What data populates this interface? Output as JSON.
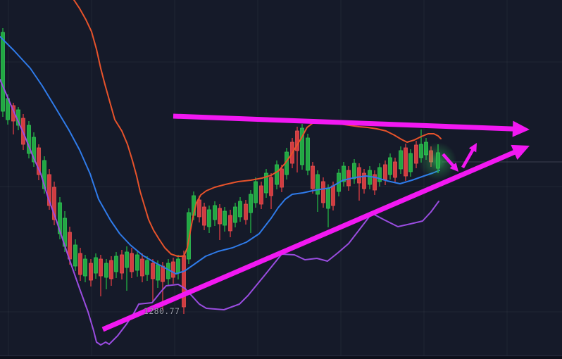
{
  "chart": {
    "price_label": "1280.77",
    "colors": {
      "background": "#151a29",
      "grid": "#ffffff",
      "candle_up": "#22a843",
      "candle_up_border": "#33c155",
      "candle_down": "#d23b41",
      "candle_down_border": "#e2534f",
      "band_upper": "#e8532b",
      "band_middle": "#2f7bea",
      "band_lower": "#9a4ce0",
      "annotation_magenta": "#f218f2",
      "glow_green": "#3ef06a",
      "price_line": "#9aa0b0",
      "label_text": "#9a9daa"
    },
    "grid": {
      "vertical_x": [
        12,
        130,
        248,
        366,
        484,
        602,
        720
      ],
      "horizontal_y": [
        88,
        265,
        443
      ]
    }
  },
  "chart_data": {
    "type": "candlestick",
    "title": "",
    "xlabel": "",
    "ylabel": "",
    "visible_price_labels": [
      "1280.77"
    ],
    "price_label_pos": [
      204,
      435
    ],
    "current_price_line": {
      "y": 230,
      "x_from": 628,
      "x_to": 798
    },
    "candles_format": [
      "x",
      "wick_top",
      "body_top",
      "body_bottom",
      "wick_bottom",
      "direction(g=up,r=down)"
    ],
    "candles": [
      [
        4,
        40,
        46,
        158,
        166,
        "g"
      ],
      [
        11,
        134,
        140,
        170,
        177,
        "g"
      ],
      [
        19,
        146,
        150,
        172,
        191,
        "r"
      ],
      [
        26,
        152,
        156,
        178,
        185,
        "g"
      ],
      [
        33,
        162,
        168,
        205,
        213,
        "r"
      ],
      [
        41,
        172,
        178,
        218,
        225,
        "g"
      ],
      [
        48,
        188,
        195,
        230,
        237,
        "g"
      ],
      [
        55,
        205,
        210,
        248,
        256,
        "r"
      ],
      [
        63,
        222,
        228,
        268,
        275,
        "g"
      ],
      [
        70,
        240,
        248,
        292,
        298,
        "r"
      ],
      [
        77,
        258,
        266,
        312,
        320,
        "r"
      ],
      [
        85,
        280,
        288,
        332,
        340,
        "g"
      ],
      [
        92,
        300,
        310,
        350,
        358,
        "g"
      ],
      [
        99,
        322,
        330,
        368,
        376,
        "r"
      ],
      [
        107,
        340,
        348,
        378,
        385,
        "g"
      ],
      [
        114,
        352,
        360,
        390,
        399,
        "r"
      ],
      [
        121,
        362,
        368,
        392,
        401,
        "g"
      ],
      [
        129,
        368,
        374,
        398,
        407,
        "r"
      ],
      [
        136,
        360,
        366,
        388,
        396,
        "g"
      ],
      [
        143,
        362,
        368,
        392,
        421,
        "r"
      ],
      [
        151,
        368,
        374,
        394,
        411,
        "g"
      ],
      [
        158,
        364,
        370,
        396,
        406,
        "r"
      ],
      [
        165,
        358,
        364,
        386,
        395,
        "g"
      ],
      [
        173,
        355,
        362,
        388,
        397,
        "r"
      ],
      [
        180,
        350,
        358,
        380,
        413,
        "g"
      ],
      [
        187,
        352,
        360,
        386,
        395,
        "r"
      ],
      [
        195,
        356,
        362,
        384,
        393,
        "g"
      ],
      [
        202,
        360,
        368,
        392,
        401,
        "r"
      ],
      [
        209,
        364,
        370,
        390,
        399,
        "g"
      ],
      [
        217,
        368,
        374,
        396,
        429,
        "r"
      ],
      [
        224,
        370,
        376,
        398,
        409,
        "g"
      ],
      [
        231,
        372,
        378,
        400,
        441,
        "r"
      ],
      [
        239,
        368,
        374,
        396,
        405,
        "g"
      ],
      [
        246,
        366,
        372,
        394,
        403,
        "r"
      ],
      [
        253,
        362,
        368,
        388,
        397,
        "g"
      ],
      [
        261,
        356,
        363,
        436,
        446,
        "r"
      ],
      [
        268,
        296,
        302,
        368,
        375,
        "g"
      ],
      [
        275,
        272,
        278,
        306,
        313,
        "g"
      ],
      [
        283,
        278,
        284,
        308,
        316,
        "r"
      ],
      [
        290,
        288,
        294,
        320,
        327,
        "r"
      ],
      [
        297,
        292,
        298,
        322,
        331,
        "g"
      ],
      [
        305,
        286,
        292,
        312,
        321,
        "g"
      ],
      [
        312,
        290,
        296,
        318,
        341,
        "r"
      ],
      [
        319,
        294,
        300,
        320,
        329,
        "g"
      ],
      [
        327,
        298,
        306,
        328,
        337,
        "r"
      ],
      [
        334,
        288,
        294,
        316,
        323,
        "g"
      ],
      [
        341,
        280,
        286,
        308,
        315,
        "g"
      ],
      [
        349,
        284,
        290,
        312,
        319,
        "r"
      ],
      [
        356,
        270,
        276,
        302,
        331,
        "g"
      ],
      [
        363,
        252,
        258,
        288,
        295,
        "g"
      ],
      [
        371,
        258,
        264,
        290,
        297,
        "r"
      ],
      [
        378,
        240,
        246,
        274,
        281,
        "g"
      ],
      [
        385,
        246,
        252,
        278,
        297,
        "r"
      ],
      [
        393,
        228,
        234,
        262,
        269,
        "g"
      ],
      [
        400,
        234,
        240,
        266,
        273,
        "r"
      ],
      [
        407,
        210,
        216,
        248,
        255,
        "g"
      ],
      [
        415,
        196,
        202,
        232,
        239,
        "r"
      ],
      [
        422,
        180,
        186,
        214,
        245,
        "r"
      ],
      [
        429,
        176,
        182,
        234,
        241,
        "g"
      ],
      [
        437,
        190,
        196,
        242,
        249,
        "g"
      ],
      [
        444,
        230,
        236,
        268,
        275,
        "r"
      ],
      [
        451,
        242,
        248,
        276,
        301,
        "g"
      ],
      [
        459,
        252,
        258,
        288,
        295,
        "r"
      ],
      [
        466,
        262,
        268,
        296,
        323,
        "g"
      ],
      [
        473,
        258,
        264,
        292,
        299,
        "r"
      ],
      [
        481,
        240,
        246,
        272,
        279,
        "g"
      ],
      [
        488,
        230,
        236,
        258,
        265,
        "g"
      ],
      [
        495,
        236,
        242,
        264,
        271,
        "r"
      ],
      [
        503,
        226,
        232,
        254,
        261,
        "g"
      ],
      [
        510,
        232,
        238,
        260,
        285,
        "r"
      ],
      [
        517,
        240,
        246,
        268,
        275,
        "r"
      ],
      [
        525,
        236,
        242,
        262,
        269,
        "g"
      ],
      [
        532,
        242,
        248,
        270,
        277,
        "r"
      ],
      [
        539,
        232,
        238,
        258,
        265,
        "g"
      ],
      [
        547,
        228,
        234,
        256,
        263,
        "r"
      ],
      [
        554,
        218,
        224,
        248,
        255,
        "g"
      ],
      [
        561,
        224,
        230,
        252,
        259,
        "r"
      ],
      [
        569,
        208,
        214,
        240,
        247,
        "g"
      ],
      [
        576,
        204,
        210,
        250,
        257,
        "r"
      ],
      [
        583,
        212,
        218,
        244,
        251,
        "g"
      ],
      [
        591,
        200,
        206,
        232,
        239,
        "r"
      ],
      [
        598,
        184,
        205,
        224,
        231,
        "g"
      ],
      [
        605,
        196,
        202,
        220,
        227,
        "g"
      ],
      [
        612,
        208,
        214,
        230,
        237,
        "r"
      ],
      [
        622,
        205,
        217,
        239,
        246,
        "g"
      ]
    ],
    "series": [
      {
        "name": "upper-band",
        "color": "#e8532b",
        "points": [
          [
            105,
            0
          ],
          [
            113,
            12
          ],
          [
            122,
            28
          ],
          [
            130,
            45
          ],
          [
            137,
            70
          ],
          [
            143,
            97
          ],
          [
            149,
            120
          ],
          [
            156,
            145
          ],
          [
            163,
            170
          ],
          [
            173,
            186
          ],
          [
            181,
            205
          ],
          [
            188,
            228
          ],
          [
            194,
            250
          ],
          [
            199,
            272
          ],
          [
            205,
            292
          ],
          [
            211,
            312
          ],
          [
            218,
            327
          ],
          [
            226,
            340
          ],
          [
            234,
            352
          ],
          [
            243,
            361
          ],
          [
            252,
            364
          ],
          [
            261,
            364
          ],
          [
            266,
            352
          ],
          [
            270,
            330
          ],
          [
            274,
            308
          ],
          [
            279,
            288
          ],
          [
            285,
            277
          ],
          [
            293,
            271
          ],
          [
            305,
            266
          ],
          [
            320,
            262
          ],
          [
            338,
            258
          ],
          [
            356,
            256
          ],
          [
            372,
            253
          ],
          [
            385,
            249
          ],
          [
            395,
            243
          ],
          [
            404,
            233
          ],
          [
            412,
            222
          ],
          [
            420,
            209
          ],
          [
            428,
            196
          ],
          [
            436,
            181
          ],
          [
            444,
            175
          ],
          [
            455,
            173
          ],
          [
            468,
            174
          ],
          [
            482,
            176
          ],
          [
            496,
            178
          ],
          [
            510,
            180
          ],
          [
            522,
            181
          ],
          [
            535,
            183
          ],
          [
            548,
            186
          ],
          [
            560,
            192
          ],
          [
            570,
            198
          ],
          [
            578,
            202
          ],
          [
            588,
            199
          ],
          [
            598,
            194
          ],
          [
            608,
            190
          ],
          [
            616,
            190
          ],
          [
            622,
            193
          ],
          [
            626,
            197
          ]
        ]
      },
      {
        "name": "middle-band",
        "color": "#2f7bea",
        "points": [
          [
            0,
            52
          ],
          [
            20,
            72
          ],
          [
            43,
            97
          ],
          [
            60,
            122
          ],
          [
            77,
            150
          ],
          [
            98,
            185
          ],
          [
            113,
            213
          ],
          [
            128,
            247
          ],
          [
            140,
            283
          ],
          [
            157,
            313
          ],
          [
            170,
            332
          ],
          [
            185,
            348
          ],
          [
            203,
            363
          ],
          [
            220,
            373
          ],
          [
            235,
            381
          ],
          [
            250,
            389
          ],
          [
            262,
            385
          ],
          [
            275,
            376
          ],
          [
            292,
            364
          ],
          [
            310,
            357
          ],
          [
            330,
            352
          ],
          [
            350,
            344
          ],
          [
            368,
            332
          ],
          [
            385,
            310
          ],
          [
            395,
            295
          ],
          [
            405,
            283
          ],
          [
            415,
            276
          ],
          [
            430,
            274
          ],
          [
            448,
            270
          ],
          [
            468,
            267
          ],
          [
            487,
            256
          ],
          [
            505,
            252
          ],
          [
            520,
            250
          ],
          [
            533,
            252
          ],
          [
            550,
            257
          ],
          [
            568,
            261
          ],
          [
            585,
            256
          ],
          [
            602,
            250
          ],
          [
            614,
            246
          ],
          [
            624,
            242
          ]
        ]
      },
      {
        "name": "lower-band",
        "color": "#9a4ce0",
        "points": [
          [
            0,
            113
          ],
          [
            18,
            155
          ],
          [
            35,
            193
          ],
          [
            48,
            225
          ],
          [
            58,
            247
          ],
          [
            68,
            280
          ],
          [
            80,
            313
          ],
          [
            98,
            367
          ],
          [
            113,
            410
          ],
          [
            125,
            443
          ],
          [
            133,
            470
          ],
          [
            137,
            486
          ],
          [
            143,
            490
          ],
          [
            150,
            486
          ],
          [
            155,
            489
          ],
          [
            167,
            477
          ],
          [
            180,
            460
          ],
          [
            190,
            445
          ],
          [
            197,
            432
          ],
          [
            216,
            430
          ],
          [
            228,
            415
          ],
          [
            236,
            406
          ],
          [
            253,
            404
          ],
          [
            263,
            410
          ],
          [
            273,
            421
          ],
          [
            283,
            432
          ],
          [
            293,
            438
          ],
          [
            318,
            440
          ],
          [
            340,
            432
          ],
          [
            352,
            420
          ],
          [
            375,
            392
          ],
          [
            400,
            361
          ],
          [
            418,
            362
          ],
          [
            433,
            369
          ],
          [
            450,
            367
          ],
          [
            465,
            371
          ],
          [
            480,
            359
          ],
          [
            495,
            346
          ],
          [
            512,
            324
          ],
          [
            528,
            303
          ],
          [
            545,
            312
          ],
          [
            565,
            322
          ],
          [
            583,
            318
          ],
          [
            600,
            314
          ],
          [
            612,
            301
          ],
          [
            623,
            286
          ]
        ]
      }
    ],
    "annotations": {
      "trend_arrows": [
        {
          "name": "upper-trendline-arrow",
          "from": [
            246,
            165
          ],
          "to": [
            752,
            184
          ],
          "shaft_width": 7,
          "head_len": 24,
          "head_width": 23
        },
        {
          "name": "lower-trendline-arrow",
          "from": [
            146,
            468
          ],
          "to": [
            752,
            207
          ],
          "shaft_width": 7,
          "head_len": 24,
          "head_width": 23
        }
      ],
      "small_arrows": [
        {
          "name": "pullback-arrow-down",
          "from": [
            629,
            219
          ],
          "to": [
            651,
            244
          ],
          "shaft_width": 4.5,
          "head_len": 12,
          "head_width": 12
        },
        {
          "name": "breakout-arrow-up",
          "from": [
            657,
            238
          ],
          "to": [
            677,
            203
          ],
          "shaft_width": 4.5,
          "head_len": 12,
          "head_width": 12
        }
      ],
      "highlight_glow": {
        "x": 621.5,
        "y": 229,
        "r": 27
      }
    }
  }
}
